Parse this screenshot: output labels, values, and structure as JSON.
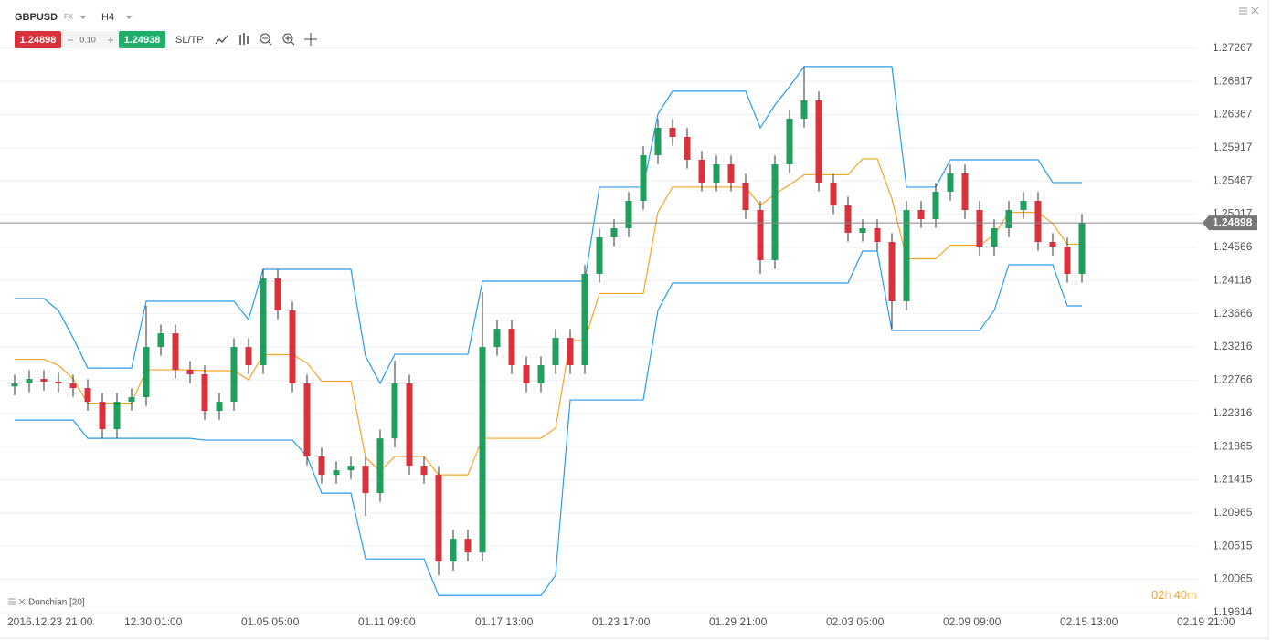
{
  "header": {
    "symbol": "GBPUSD",
    "market": "FX",
    "timeframe": "H4",
    "bid": "1.24898",
    "spread": "0.10",
    "ask": "1.24938",
    "sltp": "SL/TP"
  },
  "indicator_label": "Donchian [20]",
  "countdown": [
    "02",
    "h",
    "40",
    "m"
  ],
  "chart_data": {
    "type": "candlestick",
    "categories": [
      "2016.12.23 21:00",
      null,
      null,
      null,
      null,
      null,
      null,
      null,
      "12.30 01:00",
      null,
      null,
      null,
      null,
      null,
      null,
      null,
      "01.05 05:00",
      null,
      null,
      null,
      null,
      null,
      null,
      null,
      "01.11 09:00",
      null,
      null,
      null,
      null,
      null,
      null,
      null,
      "01.17 13:00",
      null,
      null,
      null,
      null,
      null,
      null,
      null,
      "01.23 17:00",
      null,
      null,
      null,
      null,
      null,
      null,
      null,
      "01.29 21:00",
      null,
      null,
      null,
      null,
      null,
      null,
      null,
      "02.03 05:00",
      null,
      null,
      null,
      null,
      null,
      null,
      null,
      "02.09 09:00",
      null,
      null,
      null,
      null,
      null,
      null,
      null,
      "02.15 13:00",
      null,
      null,
      null,
      null,
      null,
      null,
      null,
      "02.19 21:00"
    ],
    "open": [
      1.2268,
      1.2272,
      1.22782,
      1.22745,
      1.2272,
      1.22658,
      1.22472,
      1.221,
      1.22472,
      1.22534,
      1.23215,
      1.23401,
      1.22906,
      1.22844,
      1.22348,
      1.22472,
      1.23215,
      1.22968,
      1.24145,
      1.23711,
      1.2272,
      1.21729,
      1.21481,
      1.21543,
      1.21605,
      1.21233,
      1.21976,
      1.2272,
      1.21605,
      1.21481,
      1.20304,
      1.20614,
      1.20428,
      1.23215,
      1.23463,
      1.22968,
      1.2272,
      1.22968,
      1.23339,
      1.22968,
      1.24207,
      1.24702,
      1.24826,
      1.25198,
      1.25817,
      1.26189,
      1.26065,
      1.25755,
      1.25446,
      1.25693,
      1.25446,
      1.25074,
      1.24393,
      1.25693,
      1.26313,
      1.26561,
      1.25446,
      1.25136,
      1.24764,
      1.24826,
      1.2464,
      1.23835,
      1.25074,
      1.2495,
      1.25322,
      1.2557,
      1.25074,
      1.24578,
      1.24826,
      1.25074,
      1.25198,
      1.2464,
      1.24578,
      1.24207,
      null,
      null,
      null,
      null,
      null,
      null,
      null
    ],
    "high": [
      1.2284,
      1.22902,
      1.22902,
      1.22865,
      1.2284,
      1.22778,
      1.22592,
      1.22592,
      1.22654,
      1.23773,
      1.23521,
      1.23521,
      1.23026,
      1.22964,
      1.22592,
      1.23335,
      1.23335,
      1.24269,
      1.24265,
      1.23831,
      1.2284,
      1.21849,
      1.21663,
      1.21725,
      1.21725,
      1.22096,
      1.2303,
      1.2284,
      1.21725,
      1.21601,
      1.20734,
      1.20734,
      1.23959,
      1.23583,
      1.23583,
      1.23088,
      1.23088,
      1.23459,
      1.23459,
      1.24327,
      1.24822,
      1.24946,
      1.25318,
      1.25937,
      1.26309,
      1.26309,
      1.26185,
      1.25875,
      1.25813,
      1.25813,
      1.25566,
      1.25194,
      1.25813,
      1.26433,
      1.27019,
      1.26681,
      1.25566,
      1.25256,
      1.24946,
      1.24946,
      1.2476,
      1.25194,
      1.25194,
      1.25442,
      1.2569,
      1.2569,
      1.25194,
      1.24946,
      1.25194,
      1.25318,
      1.25318,
      1.2476,
      1.24698,
      1.25018,
      null,
      null,
      null,
      null,
      null,
      null,
      null
    ],
    "low": [
      1.2256,
      1.226,
      1.22625,
      1.226,
      1.22538,
      1.22352,
      1.21977,
      1.2198,
      1.22352,
      1.22414,
      1.23095,
      1.22786,
      1.22724,
      1.22228,
      1.22228,
      1.22352,
      1.22848,
      1.22848,
      1.23591,
      1.226,
      1.21609,
      1.21361,
      1.21361,
      1.21423,
      1.20923,
      1.21113,
      1.21856,
      1.21485,
      1.21361,
      1.20118,
      1.20184,
      1.20308,
      1.20308,
      1.23095,
      1.22848,
      1.226,
      1.226,
      1.22848,
      1.22848,
      1.22848,
      1.24087,
      1.24582,
      1.24706,
      1.25078,
      1.25697,
      1.25945,
      1.25635,
      1.25326,
      1.25326,
      1.25326,
      1.24954,
      1.24207,
      1.24273,
      1.25573,
      1.26193,
      1.25326,
      1.25016,
      1.24644,
      1.24644,
      1.2452,
      1.23463,
      1.23715,
      1.2483,
      1.2483,
      1.25202,
      1.24954,
      1.24458,
      1.24458,
      1.24706,
      1.24954,
      1.2452,
      1.24458,
      1.24087,
      1.24087,
      null,
      null,
      null,
      null,
      null,
      null,
      null
    ],
    "close": [
      1.2272,
      1.22782,
      1.22745,
      1.2272,
      1.22658,
      1.22472,
      1.221,
      1.22472,
      1.22534,
      1.23215,
      1.23401,
      1.22906,
      1.22844,
      1.22348,
      1.22472,
      1.23215,
      1.22968,
      1.24145,
      1.23711,
      1.2272,
      1.21729,
      1.21481,
      1.21543,
      1.21605,
      1.21233,
      1.21976,
      1.2272,
      1.21605,
      1.21481,
      1.20304,
      1.20614,
      1.20428,
      1.23215,
      1.23463,
      1.22968,
      1.2272,
      1.22968,
      1.23339,
      1.22968,
      1.24207,
      1.24702,
      1.24826,
      1.25198,
      1.25817,
      1.26189,
      1.26065,
      1.25755,
      1.25446,
      1.25693,
      1.25446,
      1.25074,
      1.24393,
      1.25693,
      1.26313,
      1.26561,
      1.25446,
      1.25136,
      1.24764,
      1.24826,
      1.2464,
      1.23835,
      1.25074,
      1.2495,
      1.25322,
      1.2557,
      1.25074,
      1.24578,
      1.24826,
      1.25074,
      1.25198,
      1.2464,
      1.24578,
      1.24207,
      1.24898,
      null,
      null,
      null,
      null,
      null,
      null,
      null
    ],
    "upper": [
      1.23872,
      1.23872,
      1.23872,
      1.23711,
      1.23339,
      1.2293,
      1.2293,
      1.2293,
      1.2293,
      1.23835,
      1.23835,
      1.23835,
      1.23835,
      1.23835,
      1.23835,
      1.23835,
      1.23587,
      1.24269,
      1.24269,
      1.24269,
      1.24269,
      1.24269,
      1.24269,
      1.24269,
      1.23092,
      1.2272,
      1.23116,
      1.23116,
      1.23116,
      1.23116,
      1.23116,
      1.23116,
      1.24108,
      1.24108,
      1.24108,
      1.24108,
      1.24108,
      1.24108,
      1.24108,
      1.24108,
      1.25384,
      1.25384,
      1.25384,
      1.25384,
      1.26375,
      1.26685,
      1.26685,
      1.26685,
      1.26685,
      1.26685,
      1.26685,
      1.26189,
      1.26499,
      1.26747,
      1.27019,
      1.27019,
      1.27019,
      1.27019,
      1.27019,
      1.27019,
      1.27019,
      1.25384,
      1.25384,
      1.25384,
      1.25755,
      1.25755,
      1.25755,
      1.25755,
      1.25755,
      1.25755,
      1.25755,
      1.25446,
      1.25446,
      1.25446,
      null,
      null,
      null,
      null,
      null,
      null,
      null
    ],
    "middle": [
      1.23048,
      1.23048,
      1.23048,
      1.22968,
      1.22782,
      1.22453,
      1.22453,
      1.22453,
      1.22453,
      1.22906,
      1.22906,
      1.22906,
      1.22906,
      1.22894,
      1.22894,
      1.22894,
      1.2277,
      1.23111,
      1.23111,
      1.23111,
      1.22999,
      1.22751,
      1.22751,
      1.22751,
      1.21717,
      1.21531,
      1.21729,
      1.21729,
      1.21729,
      1.21481,
      1.21481,
      1.21481,
      1.21977,
      1.21977,
      1.21977,
      1.21977,
      1.21977,
      1.22113,
      1.23303,
      1.23303,
      1.23941,
      1.23941,
      1.23941,
      1.23941,
      1.25043,
      1.25384,
      1.25384,
      1.25384,
      1.25384,
      1.25384,
      1.25384,
      1.25136,
      1.25291,
      1.25415,
      1.25551,
      1.25551,
      1.25551,
      1.25551,
      1.25768,
      1.25768,
      1.25229,
      1.24411,
      1.24411,
      1.24411,
      1.24597,
      1.24597,
      1.24597,
      1.24733,
      1.25043,
      1.25043,
      1.25043,
      1.24889,
      1.2461,
      1.2461,
      null,
      null,
      null,
      null,
      null,
      null,
      null
    ],
    "lower": [
      1.22224,
      1.22224,
      1.22224,
      1.22224,
      1.22224,
      1.21976,
      1.21976,
      1.21976,
      1.21976,
      1.21976,
      1.21976,
      1.21976,
      1.21976,
      1.21952,
      1.21952,
      1.21952,
      1.21952,
      1.21952,
      1.21952,
      1.21952,
      1.21729,
      1.21233,
      1.21233,
      1.21233,
      1.20341,
      1.20341,
      1.20341,
      1.20341,
      1.20341,
      1.19845,
      1.19845,
      1.19845,
      1.19845,
      1.19845,
      1.19845,
      1.19845,
      1.19845,
      1.20118,
      1.22497,
      1.22497,
      1.22497,
      1.22497,
      1.22497,
      1.22497,
      1.23711,
      1.24083,
      1.24083,
      1.24083,
      1.24083,
      1.24083,
      1.24083,
      1.24083,
      1.24083,
      1.24083,
      1.24083,
      1.24083,
      1.24083,
      1.24083,
      1.24516,
      1.24516,
      1.23438,
      1.23438,
      1.23438,
      1.23438,
      1.23438,
      1.23438,
      1.23438,
      1.23711,
      1.24331,
      1.24331,
      1.24331,
      1.24331,
      1.23773,
      1.23773,
      null,
      null,
      null,
      null,
      null,
      null,
      null
    ],
    "up_color": "#1f9e5c",
    "down_color": "#d8323c",
    "channel_color": "#2b9be6",
    "middle_color": "#f5a524",
    "last_price": 1.24898,
    "ylim": [
      1.196,
      1.2786
    ],
    "yticks": [
      1.27267,
      1.26817,
      1.26367,
      1.25917,
      1.25467,
      1.25017,
      1.24566,
      1.24116,
      1.23666,
      1.23216,
      1.22766,
      1.22316,
      1.21865,
      1.21415,
      1.20965,
      1.20515,
      1.20065,
      1.19614
    ],
    "grid": true
  }
}
